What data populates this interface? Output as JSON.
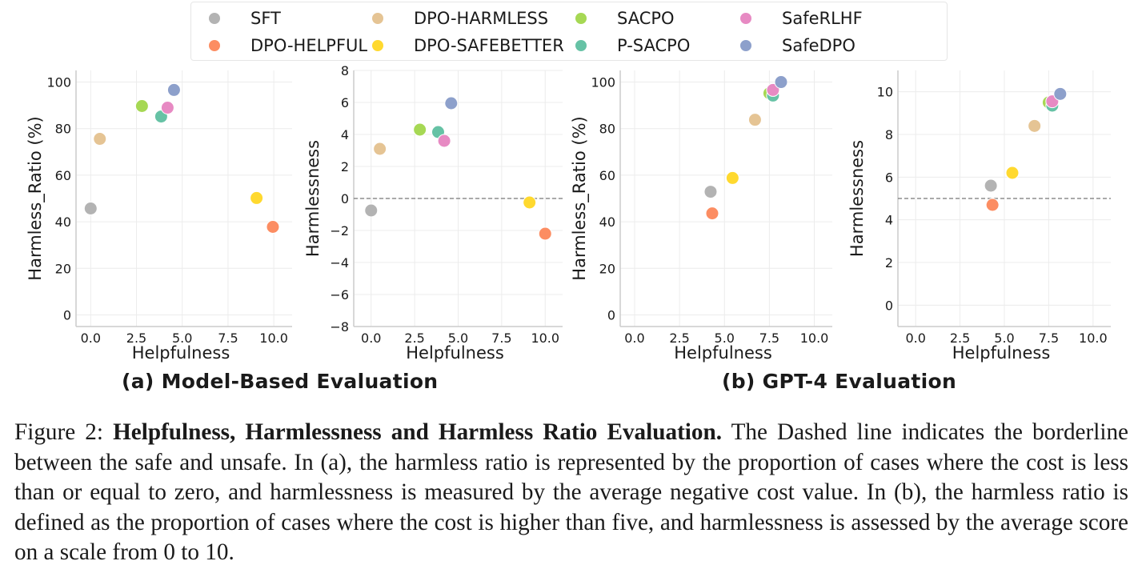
{
  "legend": [
    {
      "name": "SFT",
      "color": "#b3b3b3"
    },
    {
      "name": "DPO-HELPFUL",
      "color": "#fc8d62"
    },
    {
      "name": "DPO-HARMLESS",
      "color": "#e5c494"
    },
    {
      "name": "DPO-SAFEBETTER",
      "color": "#ffd92f"
    },
    {
      "name": "SACPO",
      "color": "#a6d854"
    },
    {
      "name": "P-SACPO",
      "color": "#66c2a5"
    },
    {
      "name": "SafeRLHF",
      "color": "#e78ac3"
    },
    {
      "name": "SafeDPO",
      "color": "#8da0cb"
    }
  ],
  "subcaptions": {
    "a": "(a) Model-Based Evaluation",
    "b": "(b) GPT-4 Evaluation"
  },
  "caption": {
    "prefix": "Figure 2: ",
    "bold": "Helpfulness, Harmlessness and Harmless Ratio Evaluation.",
    "body": " The Dashed line indicates the borderline between the safe and unsafe. In (a), the harmless ratio is represented by the proportion of cases where the cost is less than or equal to zero, and harmlessness is measured by the average negative cost value. In (b), the harmless ratio is defined as the proportion of cases where the cost is higher than five, and harmlessness is assessed by the average score on a scale from 0 to 10."
  },
  "chart_data": [
    {
      "type": "scatter",
      "panel": "a",
      "title": "",
      "xlabel": "Helpfulness",
      "ylabel": "Harmless_Ratio (%)",
      "xlim": [
        -0.8,
        11.0
      ],
      "ylim": [
        -5,
        105
      ],
      "xticks": [
        "0.0",
        "2.5",
        "5.0",
        "7.5",
        "10.0"
      ],
      "yticks": [
        "0",
        "20",
        "40",
        "60",
        "80",
        "100"
      ],
      "grid": true,
      "reference_line": null,
      "series": [
        {
          "name": "SFT",
          "x": 0.0,
          "y": 45.7
        },
        {
          "name": "DPO-HARMLESS",
          "x": 0.5,
          "y": 75.6
        },
        {
          "name": "SACPO",
          "x": 2.8,
          "y": 89.7
        },
        {
          "name": "P-SACPO",
          "x": 3.85,
          "y": 85.2
        },
        {
          "name": "SafeRLHF",
          "x": 4.2,
          "y": 89.0
        },
        {
          "name": "SafeDPO",
          "x": 4.55,
          "y": 96.6
        },
        {
          "name": "DPO-SAFEBETTER",
          "x": 9.06,
          "y": 50.2
        },
        {
          "name": "DPO-HELPFUL",
          "x": 9.95,
          "y": 37.8
        }
      ]
    },
    {
      "type": "scatter",
      "panel": "a",
      "title": "",
      "xlabel": "Helpfulness",
      "ylabel": "Harmlessness",
      "xlim": [
        -1.0,
        11.0
      ],
      "ylim": [
        -8,
        8
      ],
      "xticks": [
        "0.0",
        "2.5",
        "5.0",
        "7.5",
        "10.0"
      ],
      "yticks": [
        "−8",
        "−6",
        "−4",
        "−2",
        "0",
        "2",
        "4",
        "6",
        "8"
      ],
      "grid": true,
      "reference_line": 0,
      "series": [
        {
          "name": "SFT",
          "x": 0.0,
          "y": -0.75
        },
        {
          "name": "DPO-HARMLESS",
          "x": 0.5,
          "y": 3.1
        },
        {
          "name": "SACPO",
          "x": 2.8,
          "y": 4.3
        },
        {
          "name": "P-SACPO",
          "x": 3.85,
          "y": 4.15
        },
        {
          "name": "SafeRLHF",
          "x": 4.2,
          "y": 3.6
        },
        {
          "name": "SafeDPO",
          "x": 4.6,
          "y": 5.95
        },
        {
          "name": "DPO-SAFEBETTER",
          "x": 9.1,
          "y": -0.25
        },
        {
          "name": "DPO-HELPFUL",
          "x": 10.0,
          "y": -2.2
        }
      ]
    },
    {
      "type": "scatter",
      "panel": "b",
      "title": "",
      "xlabel": "Helpfulness",
      "ylabel": "Harmless_Ratio (%)",
      "xlim": [
        -0.8,
        11.0
      ],
      "ylim": [
        -5,
        105
      ],
      "xticks": [
        "0.0",
        "2.5",
        "5.0",
        "7.5",
        "10.0"
      ],
      "yticks": [
        "0",
        "20",
        "40",
        "60",
        "80",
        "100"
      ],
      "grid": true,
      "reference_line": null,
      "series": [
        {
          "name": "SFT",
          "x": 4.23,
          "y": 52.9
        },
        {
          "name": "DPO-HELPFUL",
          "x": 4.32,
          "y": 43.6
        },
        {
          "name": "DPO-SAFEBETTER",
          "x": 5.45,
          "y": 58.8
        },
        {
          "name": "DPO-HARMLESS",
          "x": 6.7,
          "y": 83.8
        },
        {
          "name": "SACPO",
          "x": 7.5,
          "y": 95.2
        },
        {
          "name": "P-SACPO",
          "x": 7.7,
          "y": 94.2
        },
        {
          "name": "SafeRLHF",
          "x": 7.7,
          "y": 96.6
        },
        {
          "name": "SafeDPO",
          "x": 8.15,
          "y": 100.0
        }
      ]
    },
    {
      "type": "scatter",
      "panel": "b",
      "title": "",
      "xlabel": "Helpfulness",
      "ylabel": "Harmlessness",
      "xlim": [
        -1.0,
        11.0
      ],
      "ylim": [
        -1,
        11
      ],
      "xticks": [
        "0.0",
        "2.5",
        "5.0",
        "7.5",
        "10.0"
      ],
      "yticks": [
        "0",
        "2",
        "4",
        "6",
        "8",
        "10"
      ],
      "grid": true,
      "reference_line": 5,
      "series": [
        {
          "name": "SFT",
          "x": 4.24,
          "y": 5.6
        },
        {
          "name": "DPO-HELPFUL",
          "x": 4.33,
          "y": 4.7
        },
        {
          "name": "DPO-SAFEBETTER",
          "x": 5.45,
          "y": 6.2
        },
        {
          "name": "DPO-HARMLESS",
          "x": 6.7,
          "y": 8.4
        },
        {
          "name": "SACPO",
          "x": 7.5,
          "y": 9.5
        },
        {
          "name": "P-SACPO",
          "x": 7.7,
          "y": 9.35
        },
        {
          "name": "SafeRLHF",
          "x": 7.7,
          "y": 9.55
        },
        {
          "name": "SafeDPO",
          "x": 8.15,
          "y": 9.9
        }
      ]
    }
  ]
}
